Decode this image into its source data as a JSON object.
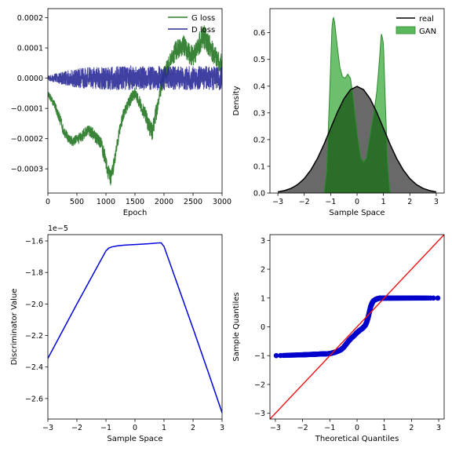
{
  "chart_data": [
    {
      "id": "loss",
      "type": "line",
      "xlabel": "Epoch",
      "ylabel": "",
      "xlim": [
        0,
        3000
      ],
      "ylim": [
        -0.00038,
        0.00023
      ],
      "xticks": [
        0,
        500,
        1000,
        1500,
        2000,
        2500,
        3000
      ],
      "yticks": [
        -0.0003,
        -0.0002,
        -0.0001,
        0.0,
        0.0001,
        0.0002
      ],
      "xtick_labels": [
        "0",
        "500",
        "1000",
        "1500",
        "2000",
        "2500",
        "3000"
      ],
      "ytick_labels": [
        "−0.0003",
        "−0.0002",
        "−0.0001",
        "0.0000",
        "0.0001",
        "0.0002"
      ],
      "legend_position": "top-right",
      "series": [
        {
          "name": "G loss",
          "color": "#2e7d2e",
          "x": [
            0,
            60,
            120,
            200,
            280,
            360,
            440,
            520,
            600,
            680,
            760,
            840,
            920,
            980,
            1040,
            1080,
            1120,
            1160,
            1200,
            1250,
            1300,
            1350,
            1400,
            1450,
            1500,
            1560,
            1620,
            1680,
            1740,
            1800,
            1860,
            1920,
            1960,
            2000,
            2050,
            2100,
            2150,
            2200,
            2260,
            2320,
            2380,
            2440,
            2500,
            2560,
            2620,
            2680,
            2740,
            2800,
            2860,
            2920,
            3000
          ],
          "y": [
            -5e-05,
            -7e-05,
            -9e-05,
            -0.00013,
            -0.00018,
            -0.0002,
            -0.00021,
            -0.0002,
            -0.00019,
            -0.00017,
            -0.00018,
            -0.0002,
            -0.00022,
            -0.00026,
            -0.00031,
            -0.00033,
            -0.0003,
            -0.00026,
            -0.00021,
            -0.00016,
            -0.00012,
            -0.0001,
            -8e-05,
            -6e-05,
            -5e-05,
            -7e-05,
            -0.0001,
            -0.00012,
            -0.00016,
            -0.00018,
            -0.00012,
            -5e-05,
            -2e-05,
            1e-05,
            3e-05,
            5e-05,
            7e-05,
            9e-05,
            0.0001,
            0.00011,
            0.0001,
            8e-05,
            7e-05,
            9e-05,
            0.00012,
            0.00014,
            0.00012,
            0.0001,
            8e-05,
            6e-05,
            5e-05
          ],
          "noise": [
            1e-05,
            1.2e-05,
            1.4e-05,
            1.8e-05,
            1.8e-05,
            1.6e-05,
            1.6e-05,
            1.8e-05,
            1.8e-05,
            1.8e-05,
            2e-05,
            2e-05,
            2.2e-05,
            2.6e-05,
            2.6e-05,
            2.6e-05,
            2.6e-05,
            2.2e-05,
            2e-05,
            2e-05,
            2e-05,
            2e-05,
            2e-05,
            2e-05,
            2e-05,
            2.2e-05,
            2.4e-05,
            2.6e-05,
            2.8e-05,
            3e-05,
            3e-05,
            3e-05,
            3e-05,
            3e-05,
            3e-05,
            3e-05,
            3e-05,
            3.2e-05,
            3.4e-05,
            3.6e-05,
            3.6e-05,
            3.6e-05,
            3.6e-05,
            3.6e-05,
            3.8e-05,
            4e-05,
            4e-05,
            3.8e-05,
            3.6e-05,
            3.4e-05,
            3.2e-05
          ]
        },
        {
          "name": "D loss",
          "color": "#2b2b99",
          "x": [
            0,
            300,
            600,
            900,
            1200,
            1500,
            1800,
            2100,
            2400,
            2700,
            3000
          ],
          "y": [
            0.0,
            0.0,
            0.0,
            0.0,
            0.0,
            0.0,
            0.0,
            0.0,
            0.0,
            0.0,
            0.0
          ],
          "noise": [
            8e-06,
            2.5e-05,
            3.5e-05,
            3.8e-05,
            4e-05,
            4e-05,
            4e-05,
            4e-05,
            4e-05,
            4e-05,
            4e-05
          ]
        }
      ]
    },
    {
      "id": "density",
      "type": "area",
      "xlabel": "Sample Space",
      "ylabel": "Density",
      "xlim": [
        -3.3,
        3.3
      ],
      "ylim": [
        0,
        0.69
      ],
      "xticks": [
        -3,
        -2,
        -1,
        0,
        1,
        2,
        3
      ],
      "yticks": [
        0.0,
        0.1,
        0.2,
        0.3,
        0.4,
        0.5,
        0.6
      ],
      "xtick_labels": [
        "−3",
        "−2",
        "−1",
        "0",
        "1",
        "2",
        "3"
      ],
      "ytick_labels": [
        "0.0",
        "0.1",
        "0.2",
        "0.3",
        "0.4",
        "0.5",
        "0.6"
      ],
      "legend_position": "top-right",
      "series": [
        {
          "name": "real",
          "color": "#000000",
          "fill": "#696969",
          "x": [
            -3,
            -2.75,
            -2.5,
            -2.25,
            -2,
            -1.75,
            -1.5,
            -1.25,
            -1,
            -0.75,
            -0.5,
            -0.25,
            0,
            0.25,
            0.5,
            0.75,
            1,
            1.25,
            1.5,
            1.75,
            2,
            2.25,
            2.5,
            2.75,
            3
          ],
          "y": [
            0.0044,
            0.0091,
            0.0175,
            0.0317,
            0.054,
            0.0863,
            0.1295,
            0.1826,
            0.242,
            0.3011,
            0.3521,
            0.3867,
            0.3989,
            0.3867,
            0.3521,
            0.3011,
            0.242,
            0.1826,
            0.1295,
            0.0863,
            0.054,
            0.0317,
            0.0175,
            0.0091,
            0.0044
          ]
        },
        {
          "name": "GAN",
          "color": "#2e8b2e",
          "fill": "#5cb85c",
          "x": [
            -1.25,
            -1.15,
            -1.05,
            -0.95,
            -0.9,
            -0.85,
            -0.75,
            -0.65,
            -0.55,
            -0.45,
            -0.35,
            -0.25,
            -0.15,
            -0.05,
            0.05,
            0.15,
            0.25,
            0.35,
            0.45,
            0.55,
            0.65,
            0.75,
            0.85,
            0.92,
            1.0,
            1.05,
            1.15,
            1.25
          ],
          "y": [
            0.0,
            0.08,
            0.34,
            0.62,
            0.66,
            0.64,
            0.55,
            0.47,
            0.435,
            0.43,
            0.445,
            0.43,
            0.36,
            0.27,
            0.19,
            0.13,
            0.115,
            0.13,
            0.19,
            0.25,
            0.31,
            0.38,
            0.5,
            0.6,
            0.56,
            0.4,
            0.12,
            0.0
          ]
        }
      ]
    },
    {
      "id": "discriminator",
      "type": "line",
      "xlabel": "Sample Space",
      "ylabel": "Discriminator Value",
      "scale_label": "1e−5",
      "xlim": [
        -3,
        3
      ],
      "ylim": [
        -2.73,
        -1.56
      ],
      "xticks": [
        -3,
        -2,
        -1,
        0,
        1,
        2,
        3
      ],
      "yticks": [
        -2.6,
        -2.4,
        -2.2,
        -2.0,
        -1.8,
        -1.6
      ],
      "xtick_labels": [
        "−3",
        "−2",
        "−1",
        "0",
        "1",
        "2",
        "3"
      ],
      "ytick_labels": [
        "−2.6",
        "−2.4",
        "−2.2",
        "−2.0",
        "−1.8",
        "−1.6"
      ],
      "series": [
        {
          "color": "#0000dd",
          "x": [
            -3,
            -2,
            -1,
            -0.9,
            -0.8,
            -0.6,
            -0.4,
            -0.2,
            0,
            0.3,
            0.6,
            0.85,
            0.9,
            1,
            1.5,
            2,
            2.5,
            3
          ],
          "y": [
            -2.345,
            -2.0,
            -1.663,
            -1.645,
            -1.638,
            -1.631,
            -1.627,
            -1.625,
            -1.623,
            -1.62,
            -1.616,
            -1.612,
            -1.612,
            -1.635,
            -1.895,
            -2.155,
            -2.42,
            -2.69
          ]
        }
      ]
    },
    {
      "id": "qq",
      "type": "scatter",
      "xlabel": "Theoretical Quantiles",
      "ylabel": "Sample Quantiles",
      "xlim": [
        -3.2,
        3.2
      ],
      "ylim": [
        -3.2,
        3.2
      ],
      "xticks": [
        -3,
        -2,
        -1,
        0,
        1,
        2,
        3
      ],
      "yticks": [
        -3,
        -2,
        -1,
        0,
        1,
        2,
        3
      ],
      "xtick_labels": [
        "−3",
        "−2",
        "−1",
        "0",
        "1",
        "2",
        "3"
      ],
      "ytick_labels": [
        "−3",
        "−2",
        "−1",
        "0",
        "1",
        "2",
        "3"
      ],
      "reference_line": {
        "color": "#ee1111",
        "x": [
          -3.2,
          3.2
        ],
        "y": [
          -3.2,
          3.2
        ]
      },
      "series": [
        {
          "color": "#0000cc",
          "curve_x": [
            -3,
            -2,
            -1.5,
            -1,
            -0.8,
            -0.6,
            -0.5,
            -0.4,
            -0.3,
            -0.2,
            -0.1,
            0,
            0.1,
            0.2,
            0.3,
            0.35,
            0.4,
            0.45,
            0.5,
            0.55,
            0.6,
            0.7,
            0.8,
            1,
            2,
            3
          ],
          "curve_y": [
            -1.0,
            -0.97,
            -0.95,
            -0.93,
            -0.88,
            -0.8,
            -0.72,
            -0.6,
            -0.48,
            -0.38,
            -0.3,
            -0.2,
            -0.12,
            -0.05,
            0.05,
            0.15,
            0.3,
            0.5,
            0.7,
            0.82,
            0.9,
            0.96,
            0.99,
            1.0,
            1.0,
            1.0
          ]
        }
      ]
    }
  ]
}
